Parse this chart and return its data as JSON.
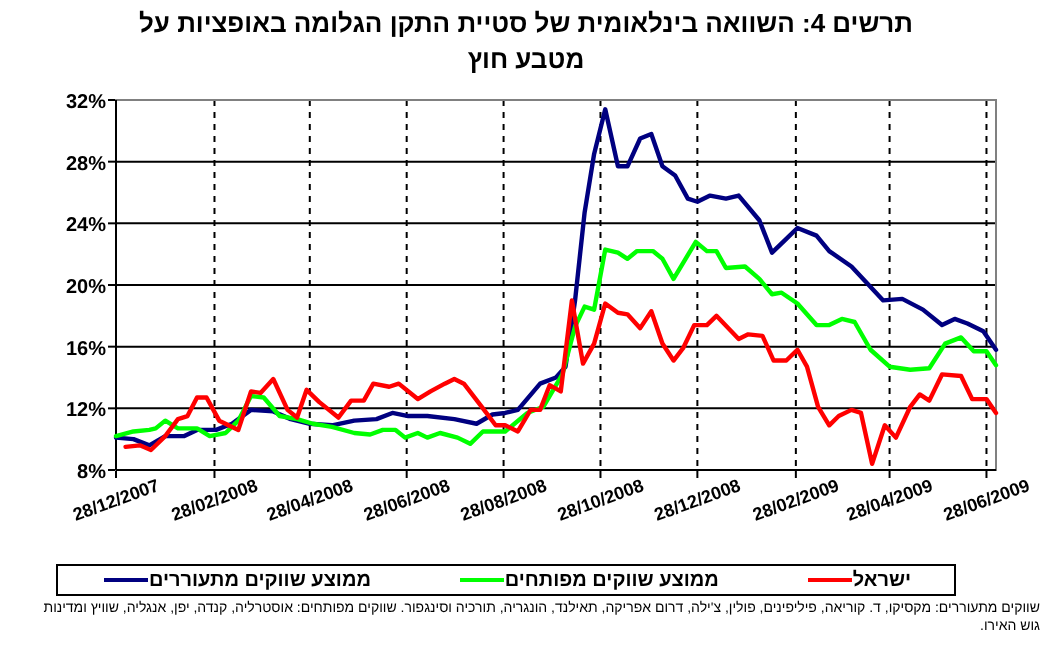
{
  "chart_data": {
    "type": "line",
    "title": "תרשים 4: השוואה בינלאומית של סטיית התקן הגלומה באופציות על מטבע חוץ",
    "xlim": [
      "2007-12-28",
      "2009-07-04"
    ],
    "xticks": [
      {
        "value": "2007-12-28",
        "label": "28/12/2007"
      },
      {
        "value": "2008-02-28",
        "label": "28/02/2008"
      },
      {
        "value": "2008-04-28",
        "label": "28/04/2008"
      },
      {
        "value": "2008-06-28",
        "label": "28/06/2008"
      },
      {
        "value": "2008-08-28",
        "label": "28/08/2008"
      },
      {
        "value": "2008-10-28",
        "label": "28/10/2008"
      },
      {
        "value": "2008-12-28",
        "label": "28/12/2008"
      },
      {
        "value": "2009-02-28",
        "label": "28/02/2009"
      },
      {
        "value": "2009-04-28",
        "label": "28/04/2009"
      },
      {
        "value": "2009-06-28",
        "label": "28/06/2009"
      }
    ],
    "ylim": [
      8,
      32
    ],
    "yticks": [
      {
        "value": 8,
        "label": "8%"
      },
      {
        "value": 12,
        "label": "12%"
      },
      {
        "value": 16,
        "label": "16%"
      },
      {
        "value": 20,
        "label": "20%"
      },
      {
        "value": 24,
        "label": "24%"
      },
      {
        "value": 28,
        "label": "28%"
      },
      {
        "value": 32,
        "label": "32%"
      }
    ],
    "grid": true,
    "legend": "bottom",
    "series": [
      {
        "name": "ישראל",
        "color": "#ff0000",
        "x": [
          "2008-01-03",
          "2008-01-12",
          "2008-01-19",
          "2008-01-28",
          "2008-02-05",
          "2008-02-11",
          "2008-02-17",
          "2008-02-23",
          "2008-03-02",
          "2008-03-14",
          "2008-03-22",
          "2008-03-28",
          "2008-04-05",
          "2008-04-14",
          "2008-04-20",
          "2008-04-26",
          "2008-05-04",
          "2008-05-16",
          "2008-05-24",
          "2008-06-01",
          "2008-06-07",
          "2008-06-17",
          "2008-06-23",
          "2008-07-05",
          "2008-07-13",
          "2008-07-22",
          "2008-07-28",
          "2008-08-03",
          "2008-08-15",
          "2008-08-23",
          "2008-08-29",
          "2008-09-06",
          "2008-09-14",
          "2008-09-20",
          "2008-09-26",
          "2008-10-03",
          "2008-10-10",
          "2008-10-17",
          "2008-10-24",
          "2008-10-31",
          "2008-11-08",
          "2008-11-14",
          "2008-11-22",
          "2008-11-29",
          "2008-12-06",
          "2008-12-13",
          "2008-12-19",
          "2008-12-26",
          "2009-01-03",
          "2009-01-09",
          "2009-01-23",
          "2009-01-29",
          "2009-02-07",
          "2009-02-14",
          "2009-02-22",
          "2009-03-01",
          "2009-03-07",
          "2009-03-14",
          "2009-03-21",
          "2009-03-27",
          "2009-04-04",
          "2009-04-10",
          "2009-04-17",
          "2009-04-25",
          "2009-05-02",
          "2009-05-11",
          "2009-05-17",
          "2009-05-23",
          "2009-05-31",
          "2009-06-12",
          "2009-06-19",
          "2009-06-28",
          "2009-07-04"
        ],
        "values": [
          9.5,
          9.6,
          9.3,
          10.2,
          11.3,
          11.5,
          12.7,
          12.7,
          11.2,
          10.6,
          13.1,
          13.0,
          13.9,
          11.9,
          11.4,
          13.2,
          12.4,
          11.4,
          12.5,
          12.5,
          13.6,
          13.4,
          13.6,
          12.6,
          13.1,
          13.6,
          13.9,
          13.6,
          12.0,
          10.9,
          10.9,
          10.5,
          11.9,
          11.9,
          13.5,
          13.1,
          19.0,
          14.9,
          16.2,
          18.8,
          18.2,
          18.1,
          17.2,
          18.3,
          16.2,
          15.1,
          15.9,
          17.4,
          17.4,
          18.0,
          16.5,
          16.8,
          16.7,
          15.1,
          15.1,
          15.8,
          14.7,
          12.1,
          10.9,
          11.5,
          11.9,
          11.7,
          8.4,
          10.9,
          10.1,
          12.1,
          12.9,
          12.5,
          14.2,
          14.1,
          12.6,
          12.6,
          11.7
        ]
      },
      {
        "name": "ממוצע שווקים מפותחים",
        "color": "#00ff00",
        "x": [
          "2007-12-28",
          "2008-01-08",
          "2008-01-18",
          "2008-01-22",
          "2008-01-28",
          "2008-02-05",
          "2008-02-17",
          "2008-02-25",
          "2008-03-06",
          "2008-03-14",
          "2008-03-22",
          "2008-03-30",
          "2008-04-09",
          "2008-04-20",
          "2008-04-30",
          "2008-05-12",
          "2008-05-26",
          "2008-06-05",
          "2008-06-13",
          "2008-06-21",
          "2008-06-27",
          "2008-07-05",
          "2008-07-11",
          "2008-07-19",
          "2008-07-30",
          "2008-08-07",
          "2008-08-15",
          "2008-08-29",
          "2008-09-12",
          "2008-09-22",
          "2008-10-04",
          "2008-10-12",
          "2008-10-18",
          "2008-10-24",
          "2008-10-31",
          "2008-11-08",
          "2008-11-14",
          "2008-11-20",
          "2008-11-30",
          "2008-12-06",
          "2008-12-13",
          "2008-12-20",
          "2008-12-27",
          "2009-01-03",
          "2009-01-09",
          "2009-01-15",
          "2009-01-27",
          "2009-02-05",
          "2009-02-13",
          "2009-02-19",
          "2009-03-01",
          "2009-03-13",
          "2009-03-21",
          "2009-03-29",
          "2009-04-06",
          "2009-04-16",
          "2009-04-28",
          "2009-05-11",
          "2009-05-23",
          "2009-06-02",
          "2009-06-12",
          "2009-06-20",
          "2009-06-28",
          "2009-07-04"
        ],
        "values": [
          10.2,
          10.5,
          10.6,
          10.7,
          11.2,
          10.7,
          10.7,
          10.2,
          10.4,
          11.2,
          12.8,
          12.7,
          11.5,
          11.3,
          11.0,
          10.8,
          10.4,
          10.3,
          10.6,
          10.6,
          10.1,
          10.4,
          10.1,
          10.4,
          10.1,
          9.7,
          10.5,
          10.5,
          11.7,
          12.1,
          14.2,
          17.3,
          18.6,
          18.4,
          22.3,
          22.1,
          21.7,
          22.2,
          22.2,
          21.7,
          20.4,
          21.6,
          22.8,
          22.2,
          22.2,
          21.1,
          21.2,
          20.4,
          19.4,
          19.5,
          18.8,
          17.4,
          17.4,
          17.8,
          17.6,
          15.8,
          14.7,
          14.5,
          14.6,
          16.2,
          16.6,
          15.7,
          15.7,
          14.8
        ]
      },
      {
        "name": "ממוצע שווקים מתעוררים",
        "color": "#000080",
        "x": [
          "2007-12-28",
          "2008-01-08",
          "2008-01-18",
          "2008-01-28",
          "2008-02-09",
          "2008-02-17",
          "2008-02-29",
          "2008-03-10",
          "2008-03-22",
          "2008-04-05",
          "2008-04-16",
          "2008-04-28",
          "2008-05-12",
          "2008-05-26",
          "2008-06-09",
          "2008-06-19",
          "2008-06-29",
          "2008-07-11",
          "2008-07-28",
          "2008-08-11",
          "2008-08-21",
          "2008-08-29",
          "2008-09-06",
          "2008-09-20",
          "2008-09-30",
          "2008-10-06",
          "2008-10-12",
          "2008-10-18",
          "2008-10-24",
          "2008-10-31",
          "2008-11-08",
          "2008-11-14",
          "2008-11-22",
          "2008-11-29",
          "2008-12-06",
          "2008-12-14",
          "2008-12-22",
          "2008-12-28",
          "2009-01-05",
          "2009-01-15",
          "2009-01-23",
          "2009-02-05",
          "2009-02-13",
          "2009-02-21",
          "2009-03-01",
          "2009-03-13",
          "2009-03-21",
          "2009-04-04",
          "2009-04-14",
          "2009-04-24",
          "2009-05-06",
          "2009-05-19",
          "2009-05-31",
          "2009-06-08",
          "2009-06-16",
          "2009-06-26",
          "2009-07-04"
        ],
        "values": [
          10.1,
          10.0,
          9.6,
          10.2,
          10.2,
          10.6,
          10.6,
          11.0,
          11.9,
          11.8,
          11.3,
          11.0,
          10.9,
          11.2,
          11.3,
          11.7,
          11.5,
          11.5,
          11.3,
          11.0,
          11.6,
          11.7,
          11.9,
          13.6,
          14.0,
          14.7,
          19.0,
          24.7,
          28.5,
          31.4,
          27.7,
          27.7,
          29.5,
          29.8,
          27.7,
          27.1,
          25.6,
          25.4,
          25.8,
          25.6,
          25.8,
          24.2,
          22.1,
          22.9,
          23.7,
          23.2,
          22.2,
          21.2,
          20.1,
          19.0,
          19.1,
          18.4,
          17.4,
          17.8,
          17.5,
          17.0,
          15.8
        ]
      }
    ],
    "annotations": [
      "שווקים מתעוררים: מקסיקו, ד. קוריאה, פיליפינים, פולין, צ'ילה, דרום אפריקה, תאילנד, הונגריה, תורכיה וסינגפור. שווקים מפותחים: אוסטרליה, קנדה, יפן, אנגליה, שוויץ ומדינות גוש האירו."
    ]
  }
}
